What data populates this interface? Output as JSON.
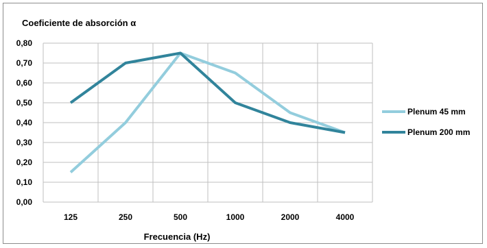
{
  "chart_data": {
    "type": "line",
    "title": "Coeficiente de absorción α",
    "xlabel": "Frecuencia (Hz)",
    "ylabel": "",
    "categories": [
      "125",
      "250",
      "500",
      "1000",
      "2000",
      "4000"
    ],
    "ylim": [
      0,
      0.8
    ],
    "ytick_step": 0.1,
    "ytick_labels": [
      "0,00",
      "0,10",
      "0,20",
      "0,30",
      "0,40",
      "0,50",
      "0,60",
      "0,70",
      "0,80"
    ],
    "grid": true,
    "legend_position": "right",
    "series": [
      {
        "name": "Plenum 45 mm",
        "color": "#93cddd",
        "values": [
          0.15,
          0.4,
          0.75,
          0.65,
          0.45,
          0.35
        ]
      },
      {
        "name": "Plenum 200 mm",
        "color": "#31849b",
        "values": [
          0.5,
          0.7,
          0.75,
          0.5,
          0.4,
          0.35
        ]
      }
    ]
  }
}
